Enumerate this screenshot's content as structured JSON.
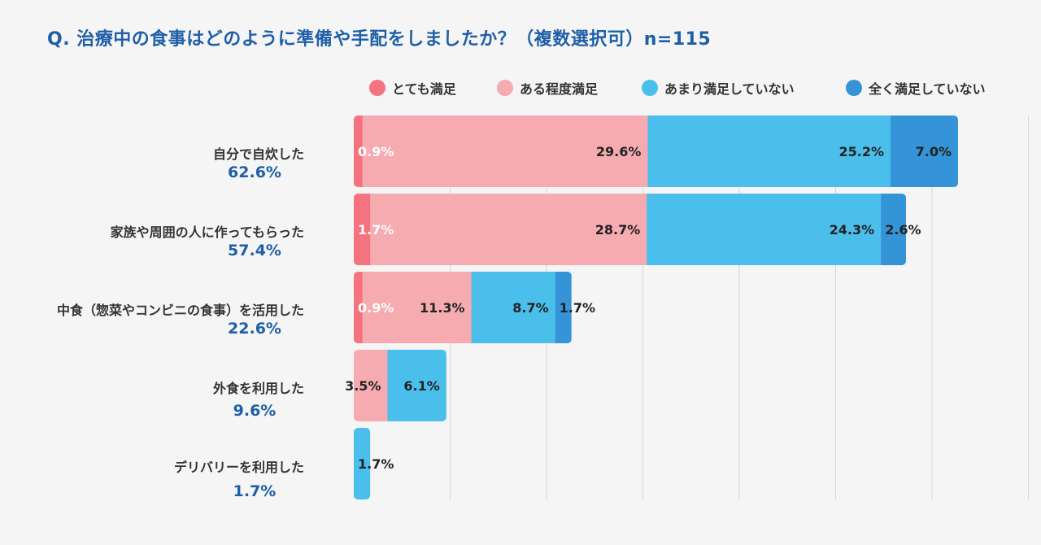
{
  "title": "Q. 治療中の食事はどのように準備や手配をしましたか？（複数選択可）n=115",
  "chart_data": {
    "type": "bar",
    "orientation": "horizontal",
    "stacked": true,
    "title": "Q. 治療中の食事はどのように準備や手配をしましたか？（複数選択可）n=115",
    "xlim": [
      0,
      70
    ],
    "grid": true,
    "legend_position": "top-right",
    "unit": "%",
    "categories": [
      "自分で自炊した",
      "家族や周囲の人に作ってもらった",
      "中食（惣菜やコンビニの食事）を活用した",
      "外食を利用した",
      "デリバリーを利用した"
    ],
    "totals": [
      "62.6%",
      "57.4%",
      "22.6%",
      "9.6%",
      "1.7%"
    ],
    "series": [
      {
        "name": "とても満足",
        "color": "#f5737f",
        "label_color": "#ffffff",
        "values": [
          0.9,
          1.7,
          0.9,
          0,
          0
        ],
        "labels": [
          "0.9%",
          "1.7%",
          "0.9%",
          "",
          ""
        ]
      },
      {
        "name": "ある程度満足",
        "color": "#f5abb0",
        "label_color": "#222222",
        "values": [
          29.6,
          28.7,
          11.3,
          3.5,
          0
        ],
        "labels": [
          "29.6%",
          "28.7%",
          "11.3%",
          "3.5%",
          ""
        ]
      },
      {
        "name": "あまり満足していない",
        "color": "#4bbfec",
        "label_color": "#222222",
        "values": [
          25.2,
          24.3,
          8.7,
          6.1,
          1.7
        ],
        "labels": [
          "25.2%",
          "24.3%",
          "8.7%",
          "6.1%",
          "1.7%"
        ]
      },
      {
        "name": "全く満足していない",
        "color": "#3594d8",
        "label_color": "#222222",
        "values": [
          7.0,
          2.6,
          1.7,
          0,
          0
        ],
        "labels": [
          "7.0%",
          "2.6%",
          "1.7%",
          "",
          ""
        ]
      }
    ]
  }
}
